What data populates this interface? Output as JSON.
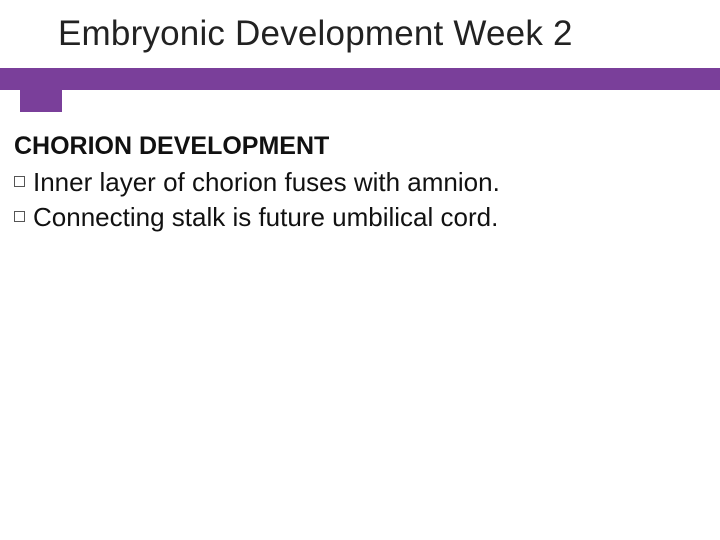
{
  "title": "Embryonic Development Week 2",
  "accent_color": "#7a3f9a",
  "section_heading": "CHORION DEVELOPMENT",
  "bullets": [
    "Inner layer of chorion fuses with amnion.",
    "Connecting stalk is future umbilical cord."
  ],
  "heading_fontsize": 25,
  "title_fontsize": 35,
  "bullet_fontsize": 26,
  "background_color": "#ffffff",
  "text_color": "#111111"
}
